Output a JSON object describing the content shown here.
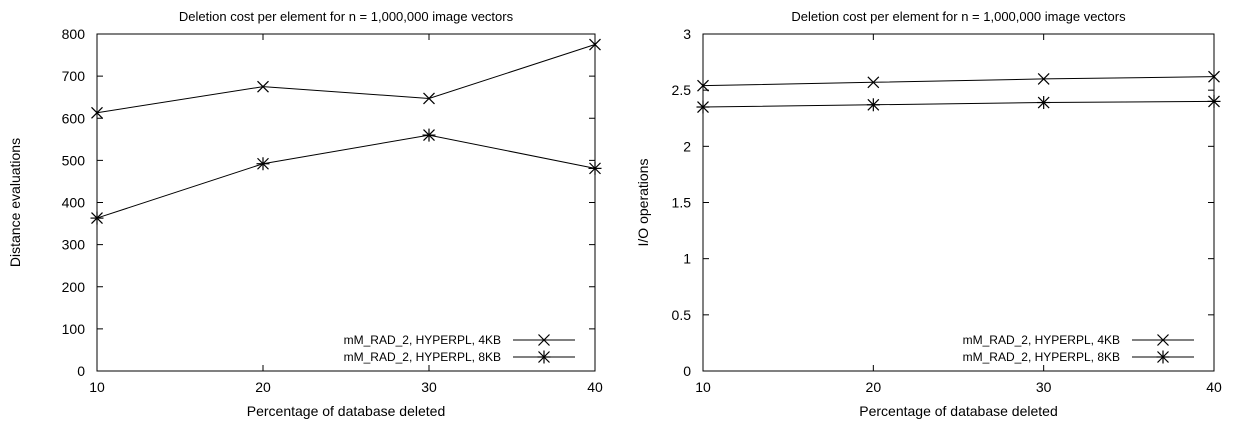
{
  "chart_data": [
    {
      "type": "line",
      "title": "Deletion cost per element for n = 1,000,000 image vectors",
      "xlabel": "Percentage of database deleted",
      "ylabel": "Distance evaluations",
      "x": [
        10,
        20,
        30,
        40
      ],
      "xticks": [
        "10",
        "20",
        "30",
        "40"
      ],
      "xlim": [
        10,
        40
      ],
      "ylim": [
        0,
        800
      ],
      "yticks": [
        "0",
        "100",
        "200",
        "300",
        "400",
        "500",
        "600",
        "700",
        "800"
      ],
      "grid": false,
      "legend_position": "bottom-right",
      "series": [
        {
          "name": "mM_RAD_2, HYPERPL, 4KB",
          "marker": "x",
          "values": [
            613,
            675,
            647,
            775
          ]
        },
        {
          "name": "mM_RAD_2, HYPERPL, 8KB",
          "marker": "star",
          "values": [
            363,
            492,
            560,
            481
          ]
        }
      ]
    },
    {
      "type": "line",
      "title": "Deletion cost per element for n = 1,000,000 image vectors",
      "xlabel": "Percentage of database deleted",
      "ylabel": "I/O operations",
      "x": [
        10,
        20,
        30,
        40
      ],
      "xticks": [
        "10",
        "20",
        "30",
        "40"
      ],
      "xlim": [
        10,
        40
      ],
      "ylim": [
        0,
        3
      ],
      "yticks": [
        "0",
        "0.5",
        "1",
        "1.5",
        "2",
        "2.5",
        "3"
      ],
      "grid": false,
      "legend_position": "bottom-right",
      "series": [
        {
          "name": "mM_RAD_2, HYPERPL, 4KB",
          "marker": "x",
          "values": [
            2.54,
            2.57,
            2.6,
            2.62
          ]
        },
        {
          "name": "mM_RAD_2, HYPERPL, 8KB",
          "marker": "star",
          "values": [
            2.35,
            2.37,
            2.39,
            2.4
          ]
        }
      ]
    }
  ]
}
